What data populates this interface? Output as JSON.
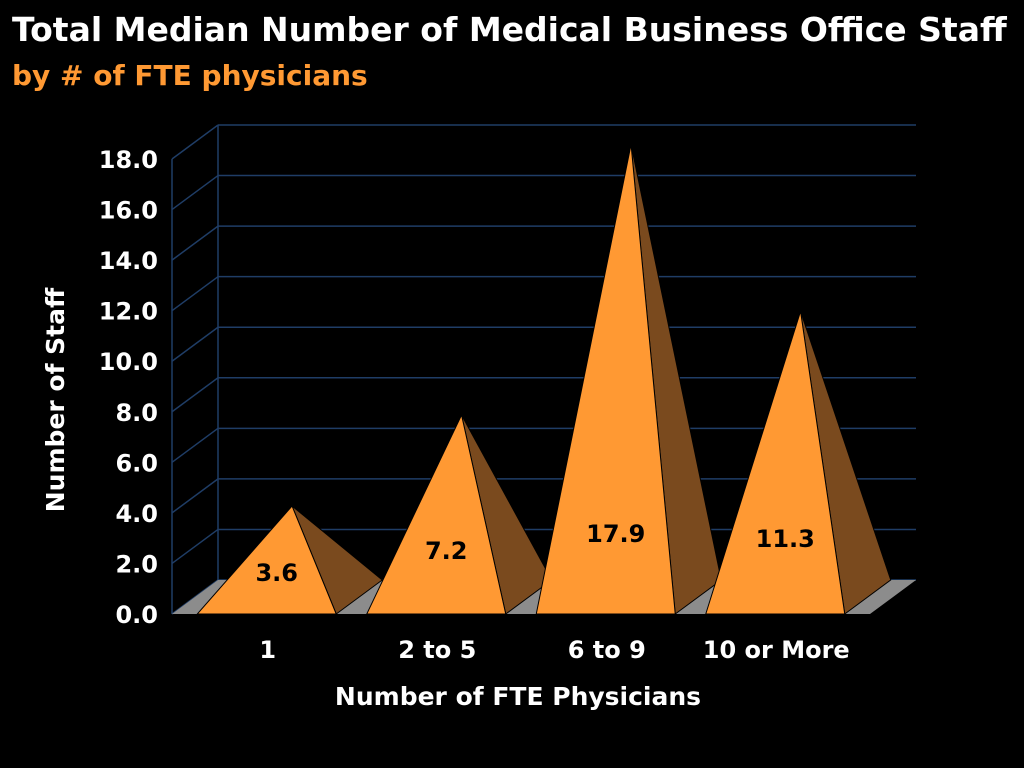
{
  "chart_data": {
    "type": "bar",
    "style": "3d-pyramid",
    "title": "Total Median Number of Medical Business Office Staff",
    "subtitle": "by # of FTE physicians",
    "categories": [
      "1",
      "2 to 5",
      "6 to 9",
      "10 or More"
    ],
    "values": [
      3.6,
      7.2,
      17.9,
      11.3
    ],
    "data_labels": [
      "3.6",
      "7.2",
      "17.9",
      "11.3"
    ],
    "xlabel": "Number of FTE Physicians",
    "ylabel": "Number of Staff",
    "ylim": [
      0,
      18
    ],
    "yticks": [
      "0.0",
      "2.0",
      "4.0",
      "6.0",
      "8.0",
      "10.0",
      "12.0",
      "14.0",
      "16.0",
      "18.0"
    ],
    "grid": true,
    "legend": "none",
    "colors": {
      "background": "#000000",
      "pyramid_front": "#ff9933",
      "pyramid_side": "#7a4a1e",
      "gridline": "#1f3d66",
      "floor": "#8c8c8c",
      "title": "#ffffff",
      "subtitle": "#ff9933"
    }
  }
}
